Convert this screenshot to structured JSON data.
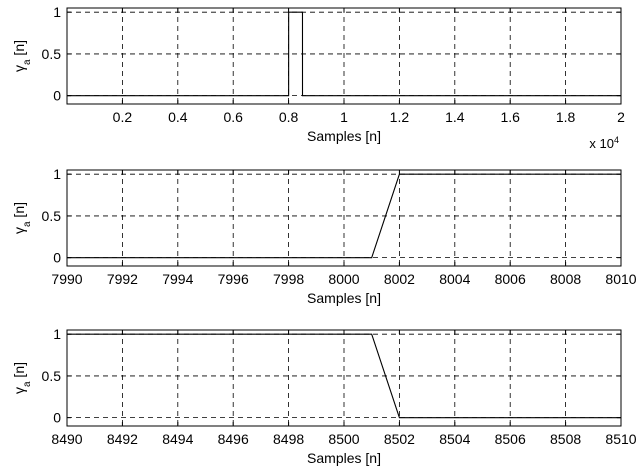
{
  "chart_data": [
    {
      "type": "line",
      "title": "",
      "xlabel": "Samples [n]",
      "ylabel": "γa [n]",
      "ylabel_main": "γ",
      "ylabel_sub": "a",
      "ylabel_rest": " [n]",
      "xlim": [
        0,
        20000
      ],
      "ylim": [
        -0.1,
        1.05
      ],
      "x_ticks": [
        2000,
        4000,
        6000,
        8000,
        10000,
        12000,
        14000,
        16000,
        18000,
        20000
      ],
      "x_tick_labels": [
        "0.2",
        "0.4",
        "0.6",
        "0.8",
        "1",
        "1.2",
        "1.4",
        "1.6",
        "1.8",
        "2"
      ],
      "y_ticks": [
        0,
        0.5,
        1
      ],
      "y_tick_labels": [
        "0",
        "0.5",
        "1"
      ],
      "x_multiplier_base": "x 10",
      "x_multiplier_exp": "4",
      "grid": true,
      "series": [
        {
          "x": [
            0,
            8000,
            8001,
            8002,
            8501,
            8502,
            20000
          ],
          "y": [
            0,
            0,
            0,
            1,
            1,
            0,
            0
          ]
        }
      ]
    },
    {
      "type": "line",
      "title": "",
      "xlabel": "Samples [n]",
      "ylabel": "γa [n]",
      "ylabel_main": "γ",
      "ylabel_sub": "a",
      "ylabel_rest": " [n]",
      "xlim": [
        7990,
        8010
      ],
      "ylim": [
        -0.1,
        1.05
      ],
      "x_ticks": [
        7990,
        7992,
        7994,
        7996,
        7998,
        8000,
        8002,
        8004,
        8006,
        8008,
        8010
      ],
      "x_tick_labels": [
        "7990",
        "7992",
        "7994",
        "7996",
        "7998",
        "8000",
        "8002",
        "8004",
        "8006",
        "8008",
        "8010"
      ],
      "y_ticks": [
        0,
        0.5,
        1
      ],
      "y_tick_labels": [
        "0",
        "0.5",
        "1"
      ],
      "grid": true,
      "series": [
        {
          "x": [
            7990,
            8001,
            8002,
            8010
          ],
          "y": [
            0,
            0,
            1,
            1
          ]
        }
      ]
    },
    {
      "type": "line",
      "title": "",
      "xlabel": "Samples [n]",
      "ylabel": "γa [n]",
      "ylabel_main": "γ",
      "ylabel_sub": "a",
      "ylabel_rest": " [n]",
      "xlim": [
        8490,
        8510
      ],
      "ylim": [
        -0.1,
        1.05
      ],
      "x_ticks": [
        8490,
        8492,
        8494,
        8496,
        8498,
        8500,
        8502,
        8504,
        8506,
        8508,
        8510
      ],
      "x_tick_labels": [
        "8490",
        "8492",
        "8494",
        "8496",
        "8498",
        "8500",
        "8502",
        "8504",
        "8506",
        "8508",
        "8510"
      ],
      "y_ticks": [
        0,
        0.5,
        1
      ],
      "y_tick_labels": [
        "0",
        "0.5",
        "1"
      ],
      "grid": true,
      "series": [
        {
          "x": [
            8490,
            8501,
            8502,
            8510
          ],
          "y": [
            1,
            1,
            0,
            0
          ]
        }
      ]
    }
  ]
}
